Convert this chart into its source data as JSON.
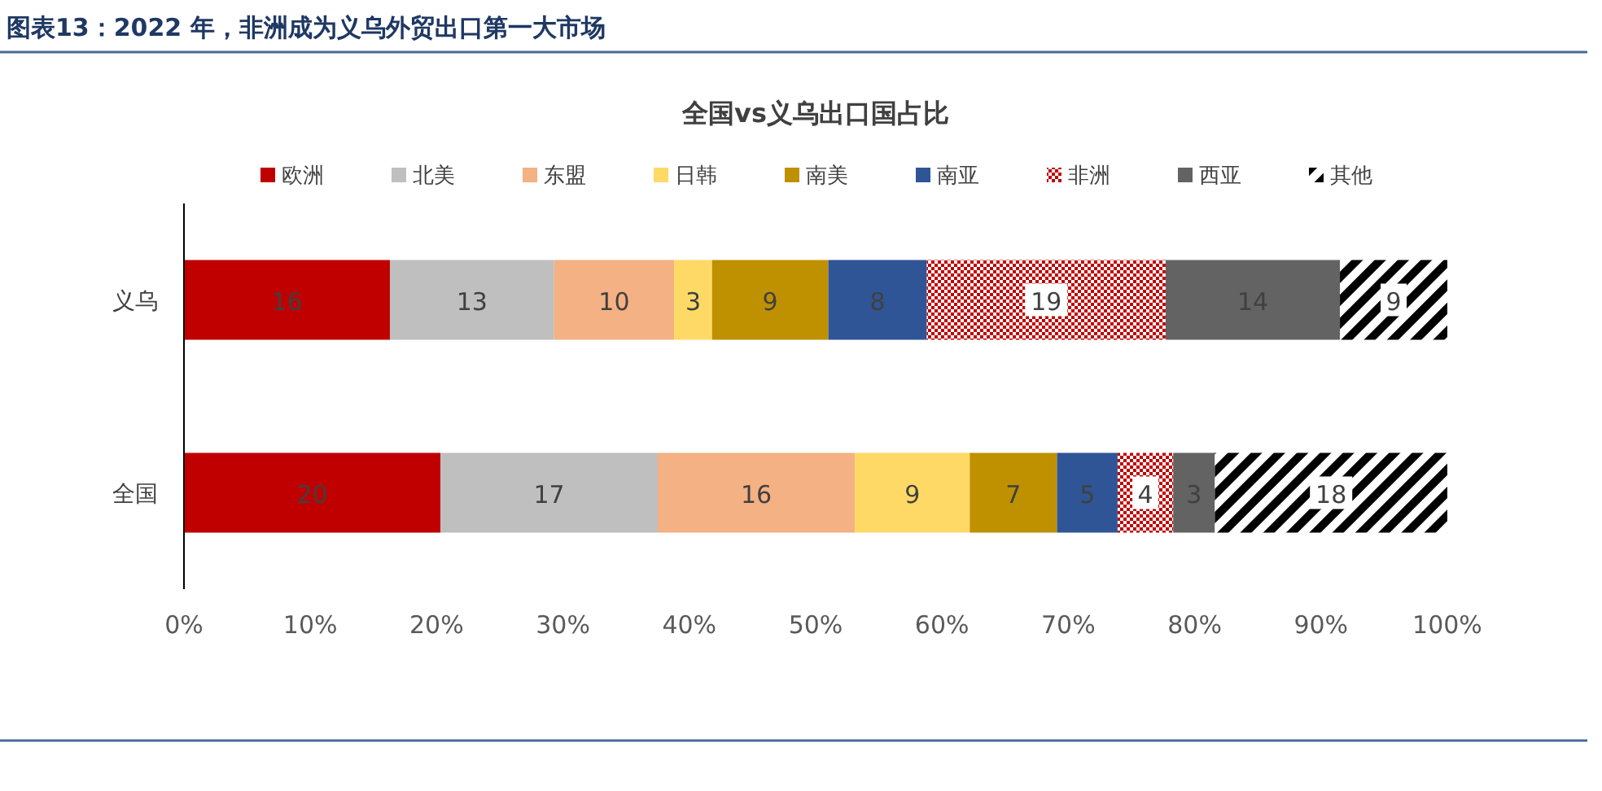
{
  "chart_data": {
    "type": "bar",
    "orientation": "horizontal",
    "stacked": true,
    "title": "图表13：2022 年，非洲成为义乌外贸出口第一大市场",
    "subtitle": "全国vs义乌出口国占比",
    "categories": [
      "义乌",
      "全国"
    ],
    "series": [
      {
        "name": "欧洲",
        "color": "#c00000",
        "values": [
          16.3,
          20.3
        ],
        "value_labels": [
          "16",
          "20"
        ]
      },
      {
        "name": "北美",
        "color": "#bfbfbf",
        "values": [
          13.0,
          17.2
        ],
        "value_labels": [
          "13",
          "17"
        ]
      },
      {
        "name": "东盟",
        "color": "#f4b183",
        "values": [
          9.5,
          15.6
        ],
        "value_labels": [
          "10",
          "16"
        ]
      },
      {
        "name": "日韩",
        "color": "#ffd966",
        "values": [
          3.0,
          9.1
        ],
        "value_labels": [
          "3",
          "9"
        ]
      },
      {
        "name": "南美",
        "color": "#bf9000",
        "values": [
          9.2,
          6.9
        ],
        "value_labels": [
          "9",
          "7"
        ]
      },
      {
        "name": "南亚",
        "color": "#2f5597",
        "values": [
          7.8,
          4.8
        ],
        "value_labels": [
          "8",
          "5"
        ]
      },
      {
        "name": "非洲",
        "color": "#c00000",
        "values": [
          18.9,
          4.4
        ],
        "value_labels": [
          "19",
          "4"
        ]
      },
      {
        "name": "西亚",
        "color": "#636363",
        "values": [
          13.8,
          3.3
        ],
        "value_labels": [
          "14",
          "3"
        ]
      },
      {
        "name": "其他",
        "color": "#000000",
        "values": [
          8.5,
          18.4
        ],
        "value_labels": [
          "9",
          "18"
        ]
      }
    ],
    "xlim": [
      0,
      100
    ],
    "xticks": [
      {
        "value": 0,
        "label": "0%"
      },
      {
        "value": 10,
        "label": "10%"
      },
      {
        "value": 20,
        "label": "20%"
      },
      {
        "value": 30,
        "label": "30%"
      },
      {
        "value": 40,
        "label": "40%"
      },
      {
        "value": 50,
        "label": "50%"
      },
      {
        "value": 60,
        "label": "60%"
      },
      {
        "value": 70,
        "label": "70%"
      },
      {
        "value": 80,
        "label": "80%"
      },
      {
        "value": 90,
        "label": "90%"
      },
      {
        "value": 100,
        "label": "100%"
      }
    ],
    "grid": false,
    "legend": "top"
  }
}
